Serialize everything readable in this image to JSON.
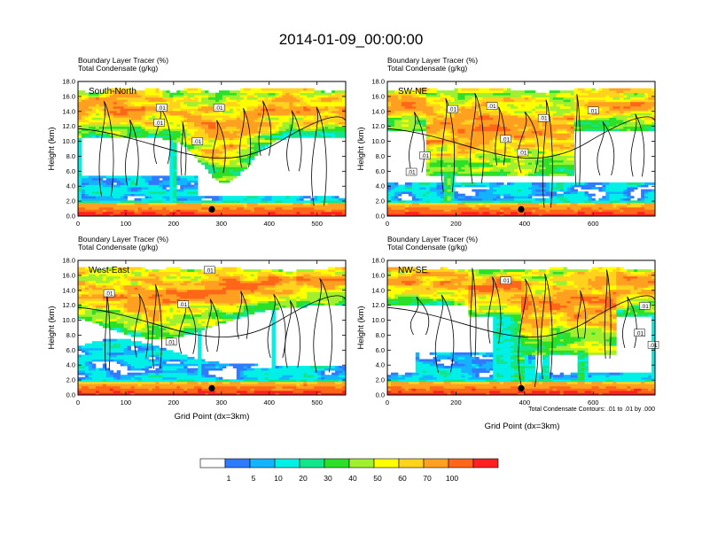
{
  "title": "2014-01-09_00:00:00",
  "colorbar": {
    "colors": [
      "#ffffff",
      "#2f7bff",
      "#13b3ff",
      "#00f0e8",
      "#12e58c",
      "#2ce028",
      "#a0f030",
      "#ffff00",
      "#ffd21e",
      "#ffa020",
      "#ff6618",
      "#ff2020"
    ],
    "labels": [
      "1",
      "5",
      "10",
      "20",
      "30",
      "40",
      "50",
      "60",
      "70",
      "100"
    ]
  },
  "footnote": "Total Condensate Contours: .01 to .01 by .000",
  "x_axis_title": "Grid Point (dx=3km)",
  "y_axis_title": "Height (km)",
  "y_ticks": [
    "0.0",
    "2.0",
    "4.0",
    "6.0",
    "8.0",
    "10.0",
    "12.0",
    "14.0",
    "16.0",
    "18.0"
  ],
  "chart_data": [
    {
      "type": "heatmap",
      "panel_label": "South-North",
      "header_line1": "Boundary Layer Tracer   (%)",
      "header_line2": "Total Condensate   (g/kg)",
      "xlim": [
        0,
        560
      ],
      "ylim": [
        0,
        18
      ],
      "x_ticks": [
        0,
        100,
        200,
        300,
        400,
        500
      ],
      "marker_x": 280,
      "contour_labels": [
        ".01",
        ".01",
        ".01",
        ".01"
      ],
      "contour_label_positions": [
        [
          175,
          14.4
        ],
        [
          295,
          14.4
        ],
        [
          170,
          12.4
        ],
        [
          250,
          9.9
        ]
      ]
    },
    {
      "type": "heatmap",
      "panel_label": "SW-NE",
      "header_line1": "Boundary Layer Tracer   (%)",
      "header_line2": "Total Condensate   (g/kg)",
      "xlim": [
        0,
        780
      ],
      "ylim": [
        0,
        18
      ],
      "x_ticks": [
        0,
        200,
        400,
        600
      ],
      "marker_x": 390,
      "contour_labels": [
        ".01",
        ".01",
        ".01",
        ".01",
        ".01",
        ".01",
        ".01",
        ".01"
      ],
      "contour_labels_positions": [
        [
          190,
          14.2
        ],
        [
          305,
          14.6
        ],
        [
          455,
          13.0
        ],
        [
          600,
          14.0
        ],
        [
          345,
          10.2
        ],
        [
          395,
          8.4
        ],
        [
          110,
          8.0
        ],
        [
          70,
          5.8
        ]
      ]
    },
    {
      "type": "heatmap",
      "panel_label": "West-East",
      "header_line1": "Boundary Layer Tracer   (%)",
      "header_line2": "Total Condensate   (g/kg)",
      "xlim": [
        0,
        560
      ],
      "ylim": [
        0,
        18
      ],
      "x_ticks": [
        0,
        100,
        200,
        300,
        400,
        500
      ],
      "marker_x": 280,
      "contour_labels": [
        ".01",
        ".01",
        ".01",
        ".01"
      ],
      "contour_labels_positions": [
        [
          275,
          16.6
        ],
        [
          65,
          13.5
        ],
        [
          220,
          12.0
        ],
        [
          195,
          7.0
        ]
      ]
    },
    {
      "type": "heatmap",
      "panel_label": "NW-SE",
      "header_line1": "Boundary Layer Tracer   (%)",
      "header_line2": "Total Condensate   (g/kg)",
      "xlim": [
        0,
        780
      ],
      "ylim": [
        0,
        18
      ],
      "x_ticks": [
        0,
        200,
        400,
        600
      ],
      "marker_x": 390,
      "contour_labels": [
        ".01",
        ".01",
        ".01",
        ".01"
      ],
      "contour_labels_positions": [
        [
          345,
          15.2
        ],
        [
          750,
          11.8
        ],
        [
          735,
          8.2
        ],
        [
          775,
          6.6
        ]
      ]
    }
  ]
}
